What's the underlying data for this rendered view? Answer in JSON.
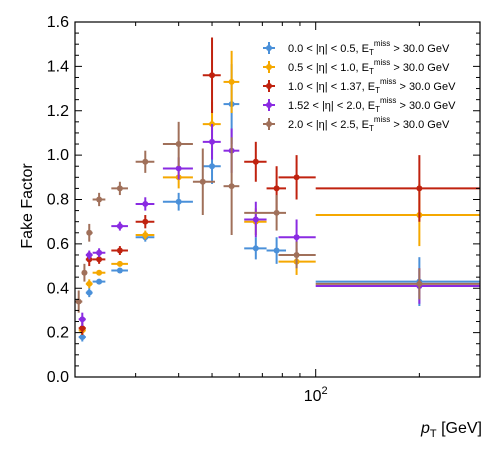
{
  "chart_data": {
    "type": "scatter",
    "xlabel_main": "p",
    "xlabel_sub": "T",
    "xlabel_unit": " [GeV]",
    "ylabel": "Fake Factor",
    "xscale": "log",
    "xlim": [
      20,
      300
    ],
    "ylim": [
      0.0,
      1.6
    ],
    "yticks": [
      "0.0",
      "0.2",
      "0.4",
      "0.6",
      "0.8",
      "1.0",
      "1.2",
      "1.4",
      "1.6"
    ],
    "xtick_major": "10",
    "xtick_major_exp": "2",
    "legend_position": "top-right",
    "grid": false,
    "series": [
      {
        "legend": {
          "a": "0.0 < |η| < 0.5, E",
          "sub": "T",
          "sup": "miss",
          "b": " > 30.0 GeV"
        },
        "color": "#4a90d9",
        "points": [
          {
            "x": 21.0,
            "xlo": 20.5,
            "xhi": 21.5,
            "y": 0.18,
            "err": 0.02
          },
          {
            "x": 22.0,
            "xlo": 21.5,
            "xhi": 22.5,
            "y": 0.38,
            "err": 0.02
          },
          {
            "x": 23.5,
            "xlo": 22.5,
            "xhi": 24.5,
            "y": 0.43,
            "err": 0.01
          },
          {
            "x": 27.0,
            "xlo": 25.5,
            "xhi": 28.5,
            "y": 0.48,
            "err": 0.01
          },
          {
            "x": 32.0,
            "xlo": 30.0,
            "xhi": 34.0,
            "y": 0.63,
            "err": 0.02
          },
          {
            "x": 40.0,
            "xlo": 36.0,
            "xhi": 44.0,
            "y": 0.79,
            "err": 0.04
          },
          {
            "x": 50.0,
            "xlo": 47.0,
            "xhi": 53.0,
            "y": 0.95,
            "err": 0.08
          },
          {
            "x": 57.0,
            "xlo": 54.0,
            "xhi": 60.0,
            "y": 1.23,
            "err": 0.18
          },
          {
            "x": 67.0,
            "xlo": 62.0,
            "xhi": 72.0,
            "y": 0.58,
            "err": 0.05
          },
          {
            "x": 77.0,
            "xlo": 72.0,
            "xhi": 82.0,
            "y": 0.57,
            "err": 0.06
          },
          {
            "x": 200.0,
            "xlo": 100.0,
            "xhi": 300.0,
            "y": 0.43,
            "err": 0.11
          }
        ]
      },
      {
        "legend": {
          "a": "0.5 < |η| < 1.0, E",
          "sub": "T",
          "sup": "miss",
          "b": " > 30.0 GeV"
        },
        "color": "#f5a800",
        "points": [
          {
            "x": 21.0,
            "xlo": 20.5,
            "xhi": 21.5,
            "y": 0.21,
            "err": 0.02
          },
          {
            "x": 22.0,
            "xlo": 21.5,
            "xhi": 22.5,
            "y": 0.42,
            "err": 0.02
          },
          {
            "x": 23.5,
            "xlo": 22.5,
            "xhi": 24.5,
            "y": 0.47,
            "err": 0.01
          },
          {
            "x": 27.0,
            "xlo": 25.5,
            "xhi": 28.5,
            "y": 0.51,
            "err": 0.01
          },
          {
            "x": 32.0,
            "xlo": 30.0,
            "xhi": 34.0,
            "y": 0.64,
            "err": 0.02
          },
          {
            "x": 40.0,
            "xlo": 36.0,
            "xhi": 44.0,
            "y": 0.9,
            "err": 0.05
          },
          {
            "x": 50.0,
            "xlo": 47.0,
            "xhi": 53.0,
            "y": 1.14,
            "err": 0.1
          },
          {
            "x": 57.0,
            "xlo": 54.0,
            "xhi": 60.0,
            "y": 1.33,
            "err": 0.14
          },
          {
            "x": 67.0,
            "xlo": 62.0,
            "xhi": 72.0,
            "y": 0.7,
            "err": 0.06
          },
          {
            "x": 88.0,
            "xlo": 78.0,
            "xhi": 100.0,
            "y": 0.52,
            "err": 0.06
          },
          {
            "x": 200.0,
            "xlo": 100.0,
            "xhi": 300.0,
            "y": 0.73,
            "err": 0.14
          }
        ]
      },
      {
        "legend": {
          "a": "1.0 < |η| < 1.37, E",
          "sub": "T",
          "sup": "miss",
          "b": " > 30.0 GeV"
        },
        "color": "#c0220f",
        "points": [
          {
            "x": 21.0,
            "xlo": 20.5,
            "xhi": 21.5,
            "y": 0.22,
            "err": 0.03
          },
          {
            "x": 22.0,
            "xlo": 21.5,
            "xhi": 22.5,
            "y": 0.53,
            "err": 0.03
          },
          {
            "x": 23.5,
            "xlo": 22.5,
            "xhi": 24.5,
            "y": 0.53,
            "err": 0.02
          },
          {
            "x": 27.0,
            "xlo": 25.5,
            "xhi": 28.5,
            "y": 0.57,
            "err": 0.02
          },
          {
            "x": 32.0,
            "xlo": 30.0,
            "xhi": 34.0,
            "y": 0.7,
            "err": 0.03
          },
          {
            "x": 50.0,
            "xlo": 47.0,
            "xhi": 53.0,
            "y": 1.36,
            "err": 0.17
          },
          {
            "x": 67.0,
            "xlo": 62.0,
            "xhi": 72.0,
            "y": 0.97,
            "err": 0.09
          },
          {
            "x": 77.0,
            "xlo": 72.0,
            "xhi": 82.0,
            "y": 0.85,
            "err": 0.1
          },
          {
            "x": 88.0,
            "xlo": 78.0,
            "xhi": 100.0,
            "y": 0.9,
            "err": 0.1
          },
          {
            "x": 200.0,
            "xlo": 100.0,
            "xhi": 300.0,
            "y": 0.85,
            "err": 0.15
          }
        ]
      },
      {
        "legend": {
          "a": "1.52 < |η| < 2.0, E",
          "sub": "T",
          "sup": "miss",
          "b": " > 30.0 GeV"
        },
        "color": "#8a2be2",
        "points": [
          {
            "x": 21.0,
            "xlo": 20.5,
            "xhi": 21.5,
            "y": 0.26,
            "err": 0.03
          },
          {
            "x": 22.0,
            "xlo": 21.5,
            "xhi": 22.5,
            "y": 0.55,
            "err": 0.02
          },
          {
            "x": 23.5,
            "xlo": 22.5,
            "xhi": 24.5,
            "y": 0.56,
            "err": 0.02
          },
          {
            "x": 27.0,
            "xlo": 25.5,
            "xhi": 28.5,
            "y": 0.68,
            "err": 0.02
          },
          {
            "x": 32.0,
            "xlo": 30.0,
            "xhi": 34.0,
            "y": 0.78,
            "err": 0.03
          },
          {
            "x": 40.0,
            "xlo": 36.0,
            "xhi": 44.0,
            "y": 0.94,
            "err": 0.05
          },
          {
            "x": 50.0,
            "xlo": 47.0,
            "xhi": 53.0,
            "y": 1.06,
            "err": 0.08
          },
          {
            "x": 57.0,
            "xlo": 54.0,
            "xhi": 60.0,
            "y": 1.02,
            "err": 0.1
          },
          {
            "x": 67.0,
            "xlo": 62.0,
            "xhi": 72.0,
            "y": 0.71,
            "err": 0.08
          },
          {
            "x": 88.0,
            "xlo": 78.0,
            "xhi": 100.0,
            "y": 0.63,
            "err": 0.08
          },
          {
            "x": 200.0,
            "xlo": 100.0,
            "xhi": 300.0,
            "y": 0.41,
            "err": 0.08
          }
        ]
      },
      {
        "legend": {
          "a": "2.0 < |η| < 2.5, E",
          "sub": "T",
          "sup": "miss",
          "b": " > 30.0 GeV"
        },
        "color": "#a0705a",
        "points": [
          {
            "x": 20.5,
            "xlo": 20.0,
            "xhi": 21.0,
            "y": 0.34,
            "err": 0.05
          },
          {
            "x": 21.3,
            "xlo": 21.0,
            "xhi": 21.7,
            "y": 0.47,
            "err": 0.04
          },
          {
            "x": 22.0,
            "xlo": 21.7,
            "xhi": 22.5,
            "y": 0.65,
            "err": 0.04
          },
          {
            "x": 23.5,
            "xlo": 22.5,
            "xhi": 24.5,
            "y": 0.8,
            "err": 0.03
          },
          {
            "x": 27.0,
            "xlo": 25.5,
            "xhi": 28.5,
            "y": 0.85,
            "err": 0.03
          },
          {
            "x": 32.0,
            "xlo": 30.0,
            "xhi": 34.0,
            "y": 0.97,
            "err": 0.05
          },
          {
            "x": 40.0,
            "xlo": 36.0,
            "xhi": 44.0,
            "y": 1.05,
            "err": 0.1
          },
          {
            "x": 47.0,
            "xlo": 44.0,
            "xhi": 51.0,
            "y": 0.88,
            "err": 0.15
          },
          {
            "x": 57.0,
            "xlo": 54.0,
            "xhi": 60.0,
            "y": 0.86,
            "err": 0.22
          },
          {
            "x": 77.0,
            "xlo": 62.0,
            "xhi": 82.0,
            "y": 0.74,
            "err": 0.08
          },
          {
            "x": 88.0,
            "xlo": 78.0,
            "xhi": 100.0,
            "y": 0.55,
            "err": 0.06
          },
          {
            "x": 200.0,
            "xlo": 100.0,
            "xhi": 300.0,
            "y": 0.42,
            "err": 0.07
          }
        ]
      }
    ]
  }
}
